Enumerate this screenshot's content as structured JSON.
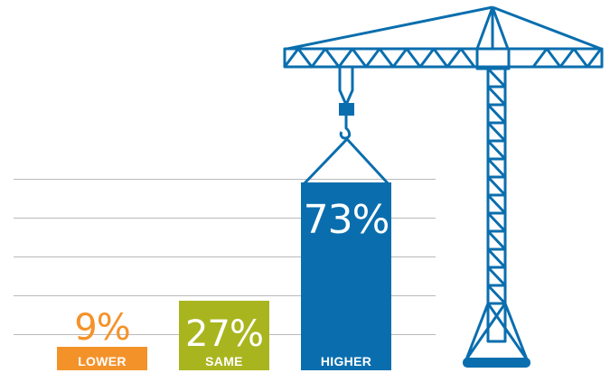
{
  "chart_data": {
    "type": "bar",
    "categories": [
      "LOWER",
      "SAME",
      "HIGHER"
    ],
    "values": [
      9,
      27,
      73
    ],
    "value_labels": [
      "9%",
      "27%",
      "73%"
    ],
    "ylim": [
      0,
      100
    ],
    "grid": true,
    "colors": [
      "#f4922a",
      "#a9b51e",
      "#0a6eae"
    ],
    "value_label_colors": [
      "#f4922a",
      "#ffffff",
      "#ffffff"
    ],
    "decoration": "construction-crane-icon"
  }
}
